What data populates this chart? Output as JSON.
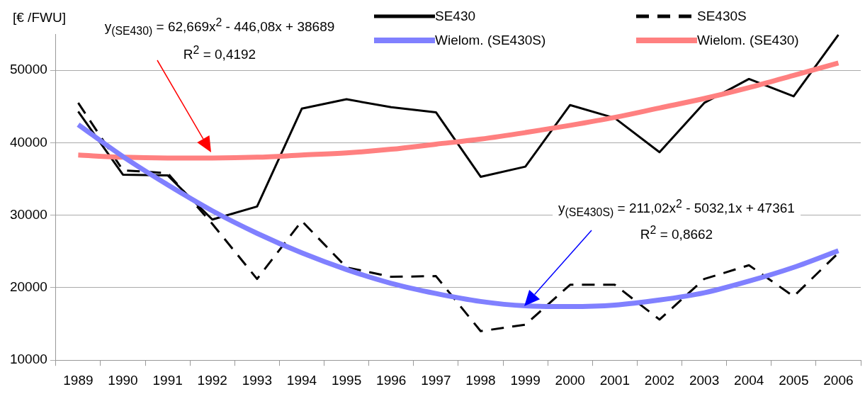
{
  "chart_data": {
    "type": "line",
    "ylabel": "[€ /FWU]",
    "categories": [
      "1989",
      "1990",
      "1991",
      "1992",
      "1993",
      "1994",
      "1995",
      "1996",
      "1997",
      "1998",
      "1999",
      "2000",
      "2001",
      "2002",
      "2003",
      "2004",
      "2005",
      "2006"
    ],
    "ylim": [
      10000,
      55000
    ],
    "yticks": [
      10000,
      20000,
      30000,
      40000,
      50000
    ],
    "grid": "y",
    "legend": "top right",
    "marker": "none",
    "series": [
      {
        "name": "SE430",
        "color": "#000000",
        "line_style": "solid",
        "values": [
          44300,
          35600,
          35500,
          29400,
          31200,
          44700,
          46000,
          44900,
          44200,
          35300,
          36700,
          45200,
          43400,
          38700,
          45500,
          48800,
          46400,
          54900
        ]
      },
      {
        "name": "SE430S",
        "color": "#000000",
        "line_style": "dashed",
        "values": [
          45500,
          36200,
          35800,
          28800,
          21200,
          29200,
          22800,
          21500,
          21600,
          14000,
          14900,
          20400,
          20400,
          15600,
          21200,
          23100,
          18800,
          24800
        ]
      },
      {
        "name": "Wielom. (SE430S)",
        "color": "#8080ff",
        "line_style": "solid",
        "values": [
          42500,
          38100,
          34200,
          30600,
          27500,
          24800,
          22500,
          20600,
          19200,
          18100,
          17500,
          17400,
          17600,
          18300,
          19300,
          20900,
          22800,
          25100
        ]
      },
      {
        "name": "Wielom. (SE430)",
        "color": "#ff8080",
        "line_style": "solid",
        "values": [
          38300,
          38000,
          37900,
          37900,
          38000,
          38300,
          38600,
          39100,
          39800,
          40500,
          41400,
          42400,
          43500,
          44800,
          46100,
          47600,
          49300,
          51000
        ]
      }
    ],
    "annotations": [
      "y$_{(SE430)}$ = 62,669x$^{2}$ - 446,08x + 38689",
      "R$^{2}$ = 0,4192",
      "y$_{(SE430S)}$ = 211,02x$^{2}$ - 5032,1x + 47361",
      "R$^{2}$ = 0,8662"
    ]
  }
}
